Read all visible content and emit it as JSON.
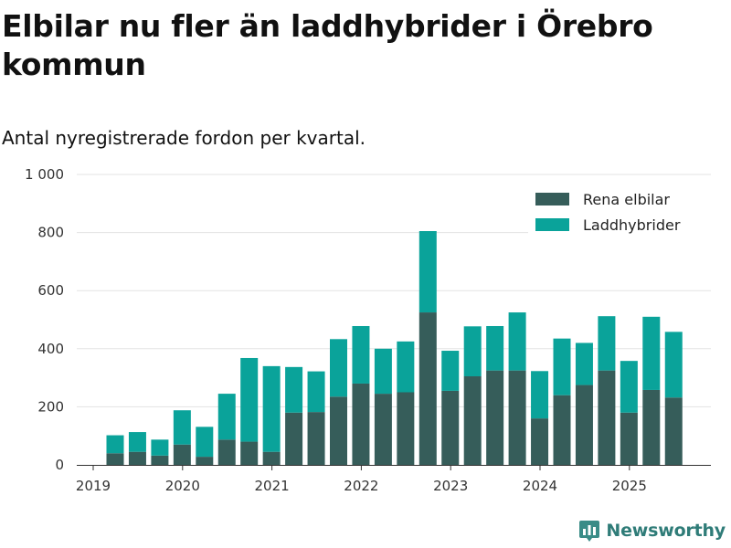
{
  "title": "Elbilar nu fler än laddhybrider i Örebro kommun",
  "subtitle": "Antal nyregistrerade fordon per kvartal.",
  "brand": "Newsworthy",
  "colors": {
    "bev": "#365d5a",
    "phev": "#0aa39a",
    "grid": "#e3e3e3",
    "axis": "#333333"
  },
  "chart_data": {
    "type": "bar",
    "stacked": true,
    "title": "Elbilar nu fler än laddhybrider i Örebro kommun",
    "subtitle": "Antal nyregistrerade fordon per kvartal.",
    "xlabel": "",
    "ylabel": "",
    "ylim": [
      0,
      1000
    ],
    "yticks": [
      0,
      200,
      400,
      600,
      800,
      1000
    ],
    "ytick_labels": [
      "0",
      "200",
      "400",
      "600",
      "800",
      "1 000"
    ],
    "xtick_labels": [
      "2019",
      "2020",
      "2021",
      "2022",
      "2023",
      "2024",
      "2025"
    ],
    "grid": true,
    "legend_position": "top-right",
    "categories": [
      "2019 Q2",
      "2019 Q3",
      "2019 Q4",
      "2020 Q1",
      "2020 Q2",
      "2020 Q3",
      "2020 Q4",
      "2021 Q1",
      "2021 Q2",
      "2021 Q3",
      "2021 Q4",
      "2022 Q1",
      "2022 Q2",
      "2022 Q3",
      "2022 Q4",
      "2023 Q1",
      "2023 Q2",
      "2023 Q3",
      "2023 Q4",
      "2024 Q1",
      "2024 Q2",
      "2024 Q3",
      "2024 Q4",
      "2025 Q1",
      "2025 Q2",
      "2025 Q3"
    ],
    "series": [
      {
        "name": "Rena elbilar",
        "values": [
          40,
          45,
          32,
          70,
          28,
          87,
          80,
          45,
          180,
          182,
          235,
          280,
          245,
          250,
          525,
          255,
          305,
          325,
          325,
          160,
          240,
          275,
          325,
          180,
          258,
          232
        ]
      },
      {
        "name": "Laddhybrider",
        "values": [
          62,
          68,
          55,
          118,
          103,
          158,
          288,
          295,
          157,
          140,
          198,
          198,
          155,
          175,
          280,
          138,
          172,
          153,
          200,
          163,
          195,
          145,
          187,
          178,
          252,
          226
        ]
      }
    ]
  }
}
